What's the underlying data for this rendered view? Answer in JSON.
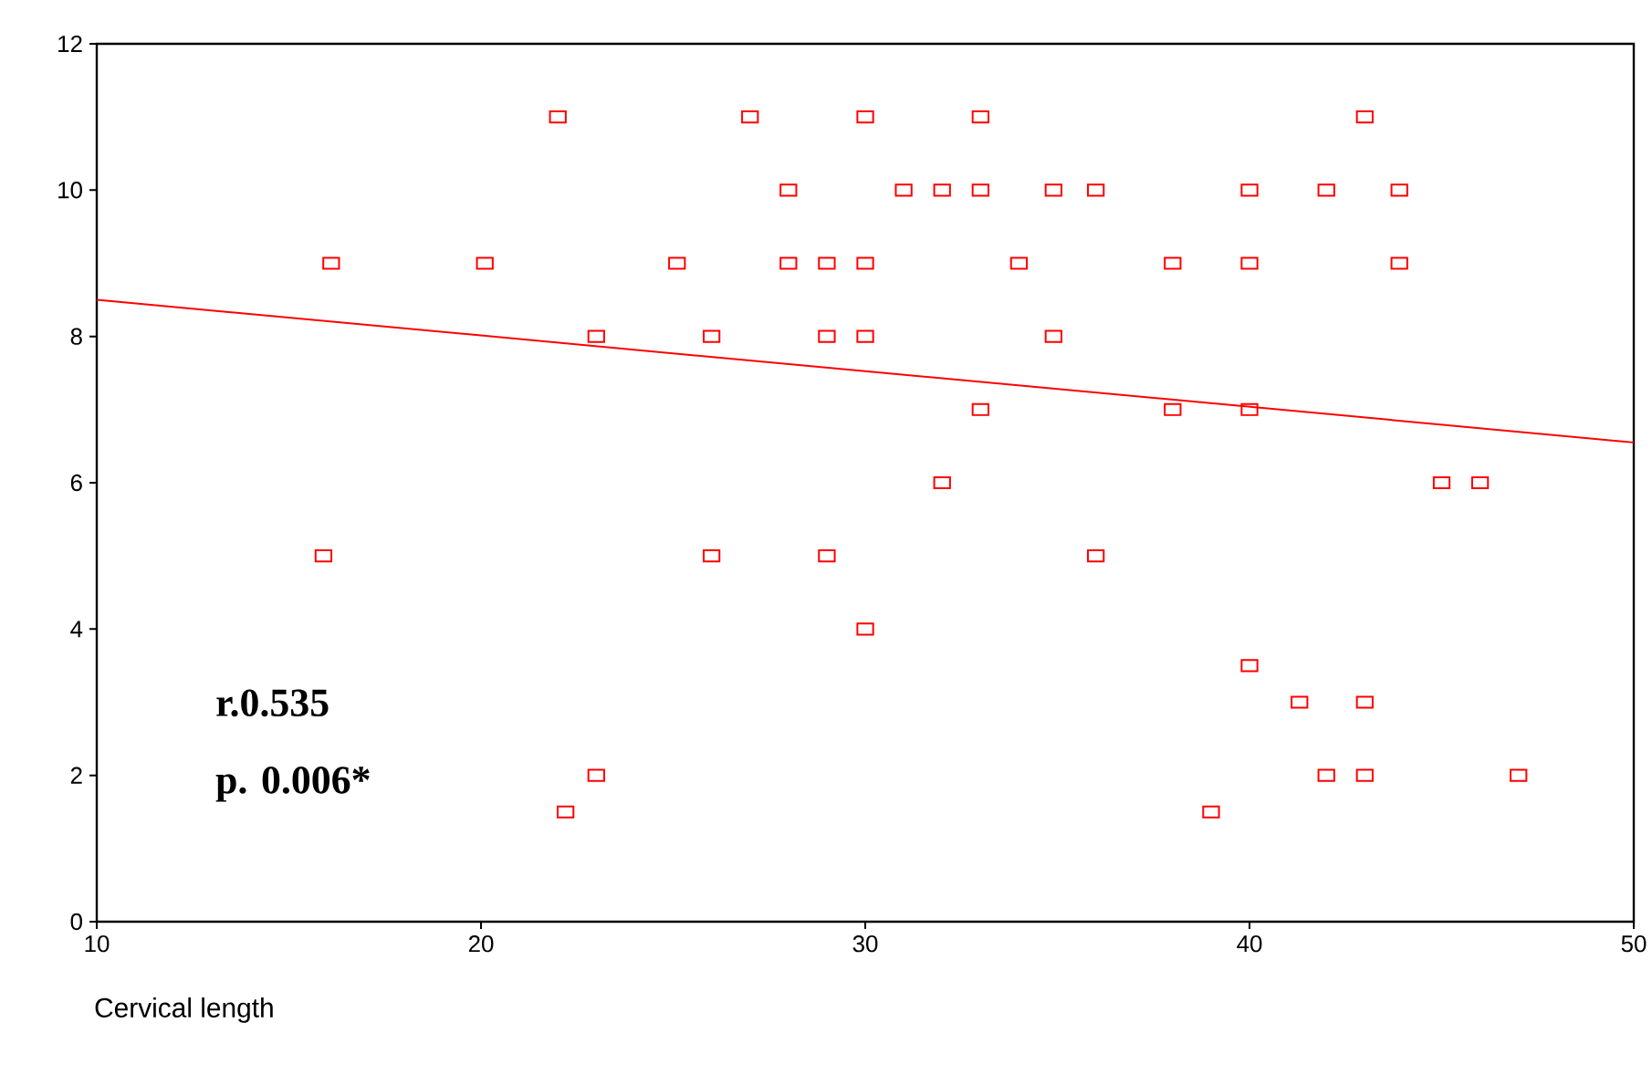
{
  "chart_data": {
    "type": "scatter",
    "xlabel": "Cervical length",
    "xlim": [
      10,
      50
    ],
    "xticks": [
      10,
      20,
      30,
      40,
      50
    ],
    "ylim": [
      0,
      12
    ],
    "yticks": [
      0,
      2,
      4,
      6,
      8,
      10,
      12
    ],
    "grid": false,
    "annotations": [
      "r.0.535",
      "p. 0.006*"
    ],
    "series": [
      {
        "color": "#ff0000",
        "marker": "square",
        "x": [
          16.1,
          15.9,
          20.1,
          22.0,
          22.2,
          23.0,
          23.0,
          25.1,
          26.0,
          26.0,
          27.0,
          28.0,
          28.0,
          29.0,
          29.0,
          29.0,
          30.0,
          30.0,
          30.0,
          30.0,
          31.0,
          32.0,
          32.0,
          33.0,
          33.0,
          33.0,
          34.0,
          34.9,
          34.9,
          36.0,
          36.0,
          38.0,
          38.0,
          39.0,
          40.0,
          40.0,
          40.0,
          40.0,
          41.3,
          42.0,
          42.0,
          43.0,
          43.0,
          43.0,
          43.9,
          43.9,
          45.0,
          46.0,
          47.0
        ],
        "values": [
          9,
          5,
          9,
          11,
          1.5,
          8,
          2,
          9,
          8,
          5,
          11,
          10,
          9,
          9,
          8,
          5,
          11,
          9,
          8,
          4,
          10,
          10,
          6,
          11,
          10,
          7,
          9,
          10,
          8,
          10,
          5,
          9,
          7,
          1.5,
          10,
          9,
          7,
          3.5,
          3,
          10,
          2,
          11,
          3,
          2,
          10,
          9,
          6,
          6,
          2
        ]
      },
      {
        "type": "line",
        "color": "#ff0000",
        "line_style": "solid",
        "x": [
          10,
          50
        ],
        "values": [
          8.5,
          6.55
        ]
      }
    ]
  }
}
